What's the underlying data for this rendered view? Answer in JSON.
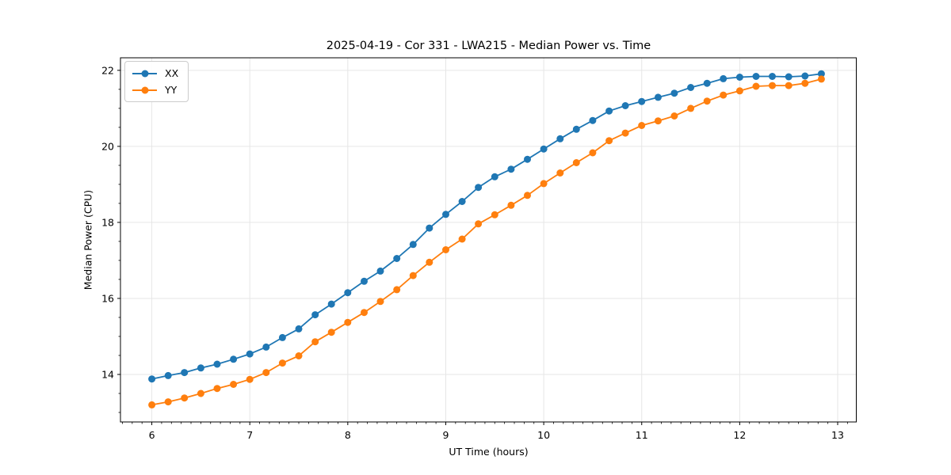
{
  "chart_data": {
    "type": "line",
    "title": "2025-04-19 - Cor 331 - LWA215 - Median Power vs. Time",
    "xlabel": "UT Time (hours)",
    "ylabel": "Median Power (CPU)",
    "xlim": [
      5.68,
      13.19
    ],
    "ylim": [
      12.75,
      22.33
    ],
    "xticks": [
      6,
      7,
      8,
      9,
      10,
      11,
      12,
      13
    ],
    "yticks": [
      14,
      16,
      18,
      20,
      22
    ],
    "x_minor_step": 0.1,
    "y_minor_step": 0.5,
    "grid": true,
    "grid_color": "#e6e6e6",
    "legend_position": "upper left",
    "x": [
      6.0,
      6.167,
      6.333,
      6.5,
      6.667,
      6.833,
      7.0,
      7.167,
      7.333,
      7.5,
      7.667,
      7.833,
      8.0,
      8.167,
      8.333,
      8.5,
      8.667,
      8.833,
      9.0,
      9.167,
      9.333,
      9.5,
      9.667,
      9.833,
      10.0,
      10.167,
      10.333,
      10.5,
      10.667,
      10.833,
      11.0,
      11.167,
      11.333,
      11.5,
      11.667,
      11.833,
      12.0,
      12.167,
      12.333,
      12.5,
      12.667,
      12.833
    ],
    "series": [
      {
        "name": "XX",
        "color": "#1f77b4",
        "marker": "circle",
        "values": [
          13.88,
          13.97,
          14.05,
          14.17,
          14.27,
          14.4,
          14.54,
          14.72,
          14.97,
          15.2,
          15.57,
          15.85,
          16.15,
          16.45,
          16.72,
          17.05,
          17.42,
          17.85,
          18.21,
          18.55,
          18.92,
          19.2,
          19.4,
          19.66,
          19.93,
          20.2,
          20.45,
          20.68,
          20.93,
          21.07,
          21.18,
          21.29,
          21.4,
          21.55,
          21.66,
          21.78,
          21.82,
          21.84,
          21.84,
          21.83,
          21.85,
          21.91
        ]
      },
      {
        "name": "YY",
        "color": "#ff7f0e",
        "marker": "circle",
        "values": [
          13.2,
          13.28,
          13.38,
          13.5,
          13.63,
          13.74,
          13.87,
          14.05,
          14.3,
          14.49,
          14.86,
          15.11,
          15.37,
          15.63,
          15.92,
          16.23,
          16.6,
          16.95,
          17.28,
          17.56,
          17.96,
          18.2,
          18.45,
          18.71,
          19.02,
          19.3,
          19.57,
          19.83,
          20.15,
          20.35,
          20.55,
          20.67,
          20.8,
          21.0,
          21.19,
          21.35,
          21.46,
          21.58,
          21.6,
          21.6,
          21.66,
          21.77
        ]
      }
    ]
  }
}
